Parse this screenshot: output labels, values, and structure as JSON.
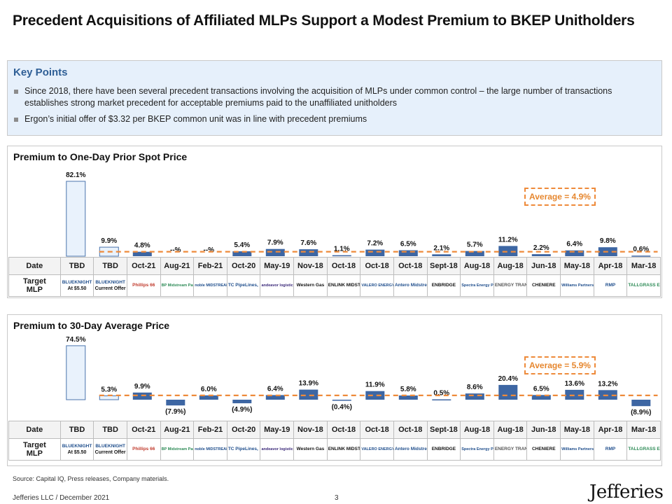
{
  "title": "Precedent Acquisitions of Affiliated MLPs Support a Modest Premium to BKEP Unitholders",
  "key_points": {
    "heading": "Key Points",
    "bullets": [
      "Since 2018, there have been several precedent transactions involving the acquisition of MLPs under common control – the large number of transactions establishes strong market precedent for acceptable premiums paid to the unaffiliated unitholders",
      "Ergon’s initial offer of $3.32 per BKEP common unit was in line with precedent premiums"
    ]
  },
  "colors": {
    "bar_fill": "#3d66a3",
    "outline_fill": "#e9f2fc",
    "outline_stroke": "#4a74ad",
    "average_line": "#ee8a3a",
    "keybox_bg": "#e6f0fb",
    "heading_blue": "#2f5f96"
  },
  "table": {
    "date_label": "Date",
    "mlp_label_line1": "Target",
    "mlp_label_line2": "MLP",
    "dates": [
      "TBD",
      "TBD",
      "Oct-21",
      "Aug-21",
      "Feb-21",
      "Oct-20",
      "May-19",
      "Nov-18",
      "Oct-18",
      "Oct-18",
      "Oct-18",
      "Sept-18",
      "Aug-18",
      "Aug-18",
      "Jun-18",
      "May-18",
      "Apr-18",
      "Mar-18"
    ],
    "logos": [
      "BLUEKNIGHT",
      "BLUEKNIGHT",
      "Phillips 66",
      "BP Midstream Partners",
      "noble MIDSTREAM PARTNERS",
      "TC PipeLines, LP",
      "andeavor logistics",
      "Western Gas",
      "ENLINK MIDSTREAM",
      "VALERO ENERGY PARTNERS LP",
      "Antero Midstream",
      "ENBRIDGE",
      "Spectra Energy Partners",
      "ENERGY TRANSFER",
      "CHENIERE",
      "Williams Partners L.P.",
      "RMP",
      "TALLGRASS ENERGY"
    ],
    "logo_subs": [
      "At $5.50",
      "Current Offer"
    ]
  },
  "chart_data": [
    {
      "type": "bar",
      "title": "Premium to One-Day Prior Spot Price",
      "categories": [
        "TBD",
        "TBD",
        "Oct-21",
        "Aug-21",
        "Feb-21",
        "Oct-20",
        "May-19",
        "Nov-18",
        "Oct-18",
        "Oct-18",
        "Oct-18",
        "Sept-18",
        "Aug-18",
        "Aug-18",
        "Jun-18",
        "May-18",
        "Apr-18",
        "Mar-18"
      ],
      "values": [
        82.1,
        9.9,
        4.8,
        0,
        0,
        5.4,
        7.9,
        7.6,
        1.1,
        7.2,
        6.5,
        2.1,
        5.7,
        11.2,
        2.2,
        6.4,
        9.8,
        0.6
      ],
      "labels": [
        "82.1%",
        "9.9%",
        "4.8%",
        "--%",
        "--%",
        "5.4%",
        "7.9%",
        "7.6%",
        "1.1%",
        "7.2%",
        "6.5%",
        "2.1%",
        "5.7%",
        "11.2%",
        "2.2%",
        "6.4%",
        "9.8%",
        "0.6%"
      ],
      "outlined": [
        true,
        true,
        false,
        false,
        false,
        false,
        false,
        false,
        false,
        false,
        false,
        false,
        false,
        false,
        false,
        false,
        false,
        false
      ],
      "average": 4.9,
      "average_label": "Average = 4.9%",
      "ylim": [
        0,
        85
      ]
    },
    {
      "type": "bar",
      "title": "Premium to 30-Day Average Price",
      "categories": [
        "TBD",
        "TBD",
        "Oct-21",
        "Aug-21",
        "Feb-21",
        "Oct-20",
        "May-19",
        "Nov-18",
        "Oct-18",
        "Oct-18",
        "Oct-18",
        "Sept-18",
        "Aug-18",
        "Aug-18",
        "Jun-18",
        "May-18",
        "Apr-18",
        "Mar-18"
      ],
      "values": [
        74.5,
        5.3,
        9.9,
        -7.9,
        6.0,
        -4.9,
        6.4,
        13.9,
        -0.4,
        11.9,
        5.8,
        0.5,
        8.6,
        20.4,
        6.5,
        13.6,
        13.2,
        -8.9
      ],
      "labels": [
        "74.5%",
        "5.3%",
        "9.9%",
        "(7.9%)",
        "6.0%",
        "(4.9%)",
        "6.4%",
        "13.9%",
        "(0.4%)",
        "11.9%",
        "5.8%",
        "0.5%",
        "8.6%",
        "20.4%",
        "6.5%",
        "13.6%",
        "13.2%",
        "(8.9%)"
      ],
      "outlined": [
        true,
        true,
        false,
        false,
        false,
        false,
        false,
        false,
        false,
        false,
        false,
        false,
        false,
        false,
        false,
        false,
        false,
        false
      ],
      "average": 5.9,
      "average_label": "Average = 5.9%",
      "ylim": [
        -10,
        80
      ]
    }
  ],
  "source": "Source: Capital IQ, Press releases, Company materials.",
  "footer": "Jefferies LLC  /  December 2021",
  "page_number": "3",
  "brand": "Jefferies"
}
